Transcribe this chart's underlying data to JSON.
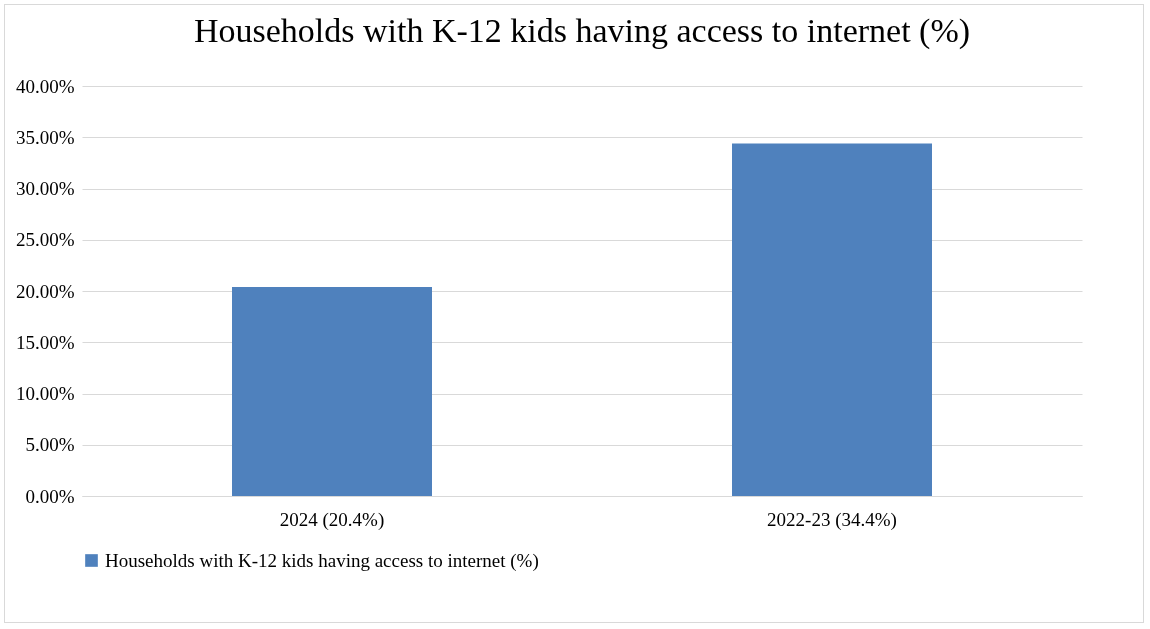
{
  "chart_data": {
    "type": "bar",
    "title": "Households with K-12 kids having access to internet (%)",
    "categories": [
      "2024 (20.4%)",
      "2022-23 (34.4%)"
    ],
    "series": [
      {
        "name": "Households with K-12 kids having access to internet (%)",
        "color": "#4f81bd",
        "values": [
          20.4,
          34.4
        ]
      }
    ],
    "ylim": [
      0,
      40
    ],
    "yticks": [
      {
        "value": 0,
        "label": "0.00%"
      },
      {
        "value": 5,
        "label": "5.00%"
      },
      {
        "value": 10,
        "label": "10.00%"
      },
      {
        "value": 15,
        "label": "15.00%"
      },
      {
        "value": 20,
        "label": "20.00%"
      },
      {
        "value": 25,
        "label": "25.00%"
      },
      {
        "value": 30,
        "label": "30.00%"
      },
      {
        "value": 35,
        "label": "35.00%"
      },
      {
        "value": 40,
        "label": "40.00%"
      }
    ],
    "grid": "y",
    "legend": "bottom"
  }
}
